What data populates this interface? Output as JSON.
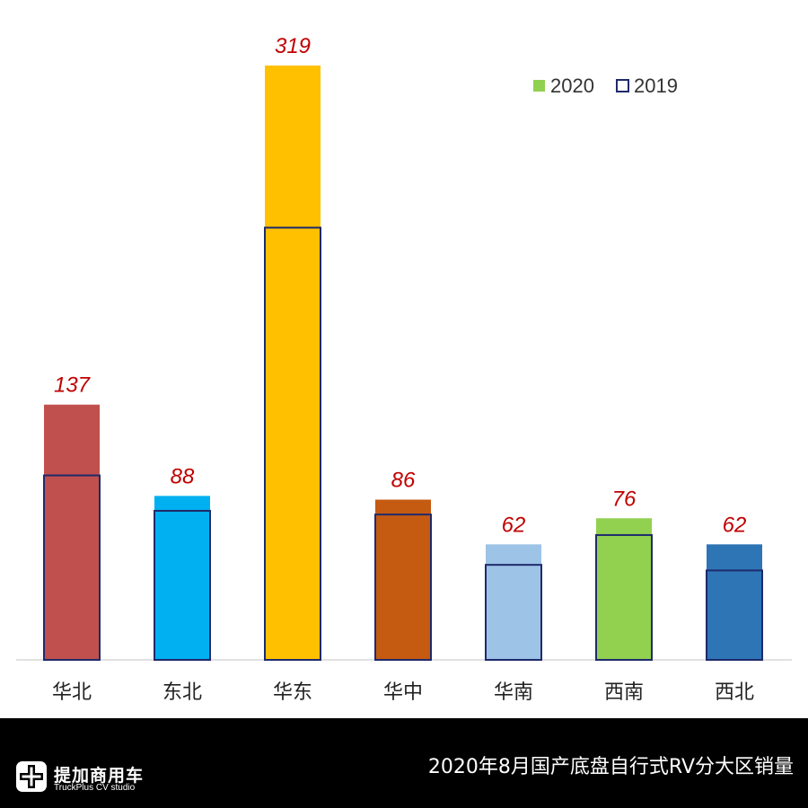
{
  "chart_data": {
    "type": "bar",
    "categories": [
      "华北",
      "东北",
      "华东",
      "华中",
      "华南",
      "西南",
      "西北"
    ],
    "series": [
      {
        "name": "2020",
        "values": [
          137,
          88,
          319,
          86,
          62,
          76,
          62
        ],
        "colors": [
          "#C0504D",
          "#00B0F0",
          "#FFC000",
          "#C55A11",
          "#9DC3E6",
          "#92D050",
          "#2E75B6"
        ]
      },
      {
        "name": "2019",
        "values": [
          99,
          80,
          232,
          78,
          51,
          67,
          48
        ],
        "style": "outline",
        "outline_color": "#1F2A6B"
      }
    ],
    "data_labels": [
      "137",
      "88",
      "319",
      "86",
      "62",
      "76",
      "62"
    ],
    "data_label_color": "#C00000",
    "ylim": [
      0,
      340
    ],
    "grid": false,
    "legend": {
      "position": "top-right",
      "items": [
        {
          "label": "2020",
          "color": "#92D050",
          "style": "filled"
        },
        {
          "label": "2019",
          "color": "#1F2A6B",
          "style": "outline"
        }
      ]
    }
  },
  "footer": {
    "title": "2020年8月国产底盘自行式RV分大区销量",
    "brand_name": "提加商用车",
    "brand_sub": "TruckPlus CV studio",
    "background": "#000000"
  }
}
